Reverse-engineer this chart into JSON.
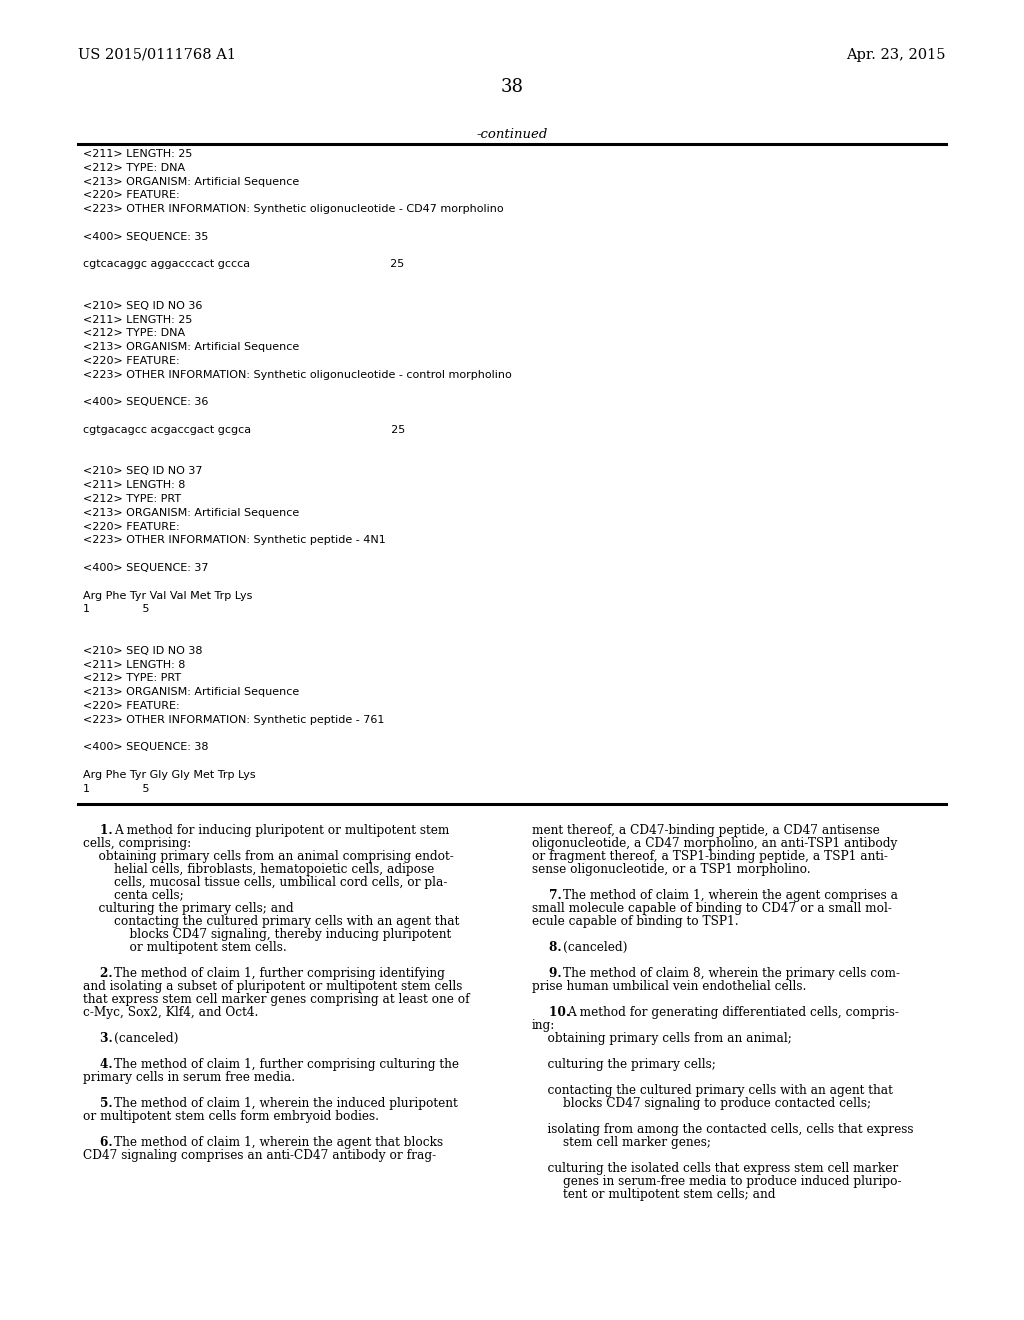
{
  "background_color": "#ffffff",
  "header_left": "US 2015/0111768 A1",
  "header_right": "Apr. 23, 2015",
  "page_number": "38",
  "continued_label": "-continued",
  "monospace_lines": [
    "<211> LENGTH: 25",
    "<212> TYPE: DNA",
    "<213> ORGANISM: Artificial Sequence",
    "<220> FEATURE:",
    "<223> OTHER INFORMATION: Synthetic oligonucleotide - CD47 morpholino",
    "",
    "<400> SEQUENCE: 35",
    "",
    "cgtcacaggc aggacccact gccca                                        25",
    "",
    "",
    "<210> SEQ ID NO 36",
    "<211> LENGTH: 25",
    "<212> TYPE: DNA",
    "<213> ORGANISM: Artificial Sequence",
    "<220> FEATURE:",
    "<223> OTHER INFORMATION: Synthetic oligonucleotide - control morpholino",
    "",
    "<400> SEQUENCE: 36",
    "",
    "cgtgacagcc acgaccgact gcgca                                        25",
    "",
    "",
    "<210> SEQ ID NO 37",
    "<211> LENGTH: 8",
    "<212> TYPE: PRT",
    "<213> ORGANISM: Artificial Sequence",
    "<220> FEATURE:",
    "<223> OTHER INFORMATION: Synthetic peptide - 4N1",
    "",
    "<400> SEQUENCE: 37",
    "",
    "Arg Phe Tyr Val Val Met Trp Lys",
    "1               5",
    "",
    "",
    "<210> SEQ ID NO 38",
    "<211> LENGTH: 8",
    "<212> TYPE: PRT",
    "<213> ORGANISM: Artificial Sequence",
    "<220> FEATURE:",
    "<223> OTHER INFORMATION: Synthetic peptide - 761",
    "",
    "<400> SEQUENCE: 38",
    "",
    "Arg Phe Tyr Gly Gly Met Trp Lys",
    "1               5"
  ],
  "claim_lines_col1": [
    [
      "bold",
      "    1. ",
      "A method for inducing pluripotent or multipotent stem"
    ],
    [
      "normal",
      "cells, comprising:"
    ],
    [
      "normal",
      "    obtaining primary cells from an animal comprising endot-"
    ],
    [
      "normal",
      "        helial cells, fibroblasts, hematopoietic cells, adipose"
    ],
    [
      "normal",
      "        cells, mucosal tissue cells, umbilical cord cells, or pla-"
    ],
    [
      "normal",
      "        centa cells;"
    ],
    [
      "normal",
      "    culturing the primary cells; and"
    ],
    [
      "normal",
      "        contacting the cultured primary cells with an agent that"
    ],
    [
      "normal",
      "            blocks CD47 signaling, thereby inducing pluripotent"
    ],
    [
      "normal",
      "            or multipotent stem cells."
    ],
    [
      "blank",
      ""
    ],
    [
      "bold",
      "    2. ",
      "The method of claim "
    ],
    [
      "normal",
      "and isolating a subset of pluripotent or multipotent stem cells"
    ],
    [
      "normal",
      "that express stem cell marker genes comprising at least one of"
    ],
    [
      "normal",
      "c-Myc, Sox2, Klf4, and Oct4."
    ],
    [
      "blank",
      ""
    ],
    [
      "bold",
      "    3. ",
      "(canceled)"
    ],
    [
      "blank",
      ""
    ],
    [
      "bold",
      "    4. ",
      "The method of claim "
    ],
    [
      "normal",
      "primary cells in serum free media."
    ],
    [
      "blank",
      ""
    ],
    [
      "bold",
      "    5. ",
      "The method of claim "
    ],
    [
      "normal",
      "or multipotent stem cells form embryoid bodies."
    ],
    [
      "blank",
      ""
    ],
    [
      "bold",
      "    6. ",
      "The method of claim 1, wherein the agent that blocks"
    ],
    [
      "normal",
      "CD47 signaling comprises an anti-CD47 antibody or frag-"
    ]
  ],
  "claim_lines_col2": [
    [
      "normal",
      "ment thereof, a CD47-binding peptide, a CD47 antisense"
    ],
    [
      "normal",
      "oligonucleotide, a CD47 morpholino, an anti-TSP1 antibody"
    ],
    [
      "normal",
      "or fragment thereof, a TSP1-binding peptide, a TSP1 anti-"
    ],
    [
      "normal",
      "sense oligonucleotide, or a TSP1 morpholino."
    ],
    [
      "blank",
      ""
    ],
    [
      "bold",
      "    7. ",
      "The method of claim "
    ],
    [
      "normal",
      "small molecule capable of binding to CD47 or a small mol-"
    ],
    [
      "normal",
      "ecule capable of binding to TSP1."
    ],
    [
      "blank",
      ""
    ],
    [
      "bold",
      "    8. ",
      "(canceled)"
    ],
    [
      "blank",
      ""
    ],
    [
      "bold",
      "    9. ",
      "The method of claim "
    ],
    [
      "normal",
      "prise human umbilical vein endothelial cells."
    ],
    [
      "blank",
      ""
    ],
    [
      "bold",
      "    10. ",
      "A method for generating differentiated cells, compris-"
    ],
    [
      "normal",
      "ing:"
    ],
    [
      "normal",
      "    obtaining primary cells from an animal;"
    ],
    [
      "blank",
      ""
    ],
    [
      "normal",
      "    culturing the primary cells;"
    ],
    [
      "blank",
      ""
    ],
    [
      "normal",
      "    contacting the cultured primary cells with an agent that"
    ],
    [
      "normal",
      "        blocks CD47 signaling to produce contacted cells;"
    ],
    [
      "blank",
      ""
    ],
    [
      "normal",
      "    isolating from among the contacted cells, cells that express"
    ],
    [
      "normal",
      "        stem cell marker genes;"
    ],
    [
      "blank",
      ""
    ],
    [
      "normal",
      "    culturing the isolated cells that express stem cell marker"
    ],
    [
      "normal",
      "        genes in serum-free media to produce induced pluripo-"
    ],
    [
      "normal",
      "        tent or multipotent stem cells; and"
    ]
  ],
  "claim_lines_col1_full": [
    "    1. A method for inducing pluripotent or multipotent stem",
    "cells, comprising:",
    "    obtaining primary cells from an animal comprising endot-",
    "        helial cells, fibroblasts, hematopoietic cells, adipose",
    "        cells, mucosal tissue cells, umbilical cord cells, or pla-",
    "        centa cells;",
    "    culturing the primary cells; and",
    "        contacting the cultured primary cells with an agent that",
    "            blocks CD47 signaling, thereby inducing pluripotent",
    "            or multipotent stem cells.",
    "",
    "    2. The method of claim 1, further comprising identifying",
    "and isolating a subset of pluripotent or multipotent stem cells",
    "that express stem cell marker genes comprising at least one of",
    "c-Myc, Sox2, Klf4, and Oct4.",
    "",
    "    3. (canceled)",
    "",
    "    4. The method of claim 1, further comprising culturing the",
    "primary cells in serum free media.",
    "",
    "    5. The method of claim 1, wherein the induced pluripotent",
    "or multipotent stem cells form embryoid bodies.",
    "",
    "    6. The method of claim 1, wherein the agent that blocks",
    "CD47 signaling comprises an anti-CD47 antibody or frag-"
  ],
  "claim_lines_col2_full": [
    "ment thereof, a CD47-binding peptide, a CD47 antisense",
    "oligonucleotide, a CD47 morpholino, an anti-TSP1 antibody",
    "or fragment thereof, a TSP1-binding peptide, a TSP1 anti-",
    "sense oligonucleotide, or a TSP1 morpholino.",
    "",
    "    7. The method of claim 1, wherein the agent comprises a",
    "small molecule capable of binding to CD47 or a small mol-",
    "ecule capable of binding to TSP1.",
    "",
    "    8. (canceled)",
    "",
    "    9. The method of claim 8, wherein the primary cells com-",
    "prise human umbilical vein endothelial cells.",
    "",
    "    10. A method for generating differentiated cells, compris-",
    "ing:",
    "    obtaining primary cells from an animal;",
    "",
    "    culturing the primary cells;",
    "",
    "    contacting the cultured primary cells with an agent that",
    "        blocks CD47 signaling to produce contacted cells;",
    "",
    "    isolating from among the contacted cells, cells that express",
    "        stem cell marker genes;",
    "",
    "    culturing the isolated cells that express stem cell marker",
    "        genes in serum-free media to produce induced pluripo-",
    "        tent or multipotent stem cells; and"
  ],
  "bold_claim_prefixes": [
    "    1. ",
    "    2. ",
    "    3. ",
    "    4. ",
    "    5. ",
    "    6. ",
    "    7. ",
    "    8. ",
    "    9. ",
    "    10. "
  ],
  "bold_inline": {
    "    2. The method of claim 1, further comprising identifying": [
      "    2. ",
      "1"
    ],
    "    4. The method of claim 1, further comprising culturing the": [
      "    4. ",
      "1"
    ],
    "    5. The method of claim 1, wherein the induced pluripotent": [
      "    5. ",
      "1"
    ],
    "    6. The method of claim 1, wherein the agent that blocks": [
      "    6. ",
      "1"
    ],
    "    7. The method of claim 1, wherein the agent comprises a": [
      "    7. ",
      "1"
    ],
    "    9. The method of claim 8, wherein the primary cells com-": [
      "    9. ",
      "8"
    ]
  }
}
